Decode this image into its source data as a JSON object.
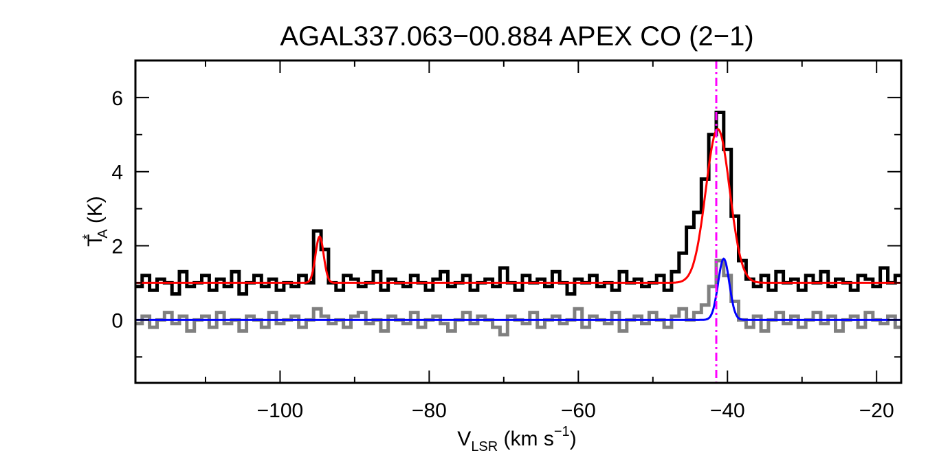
{
  "chart_data": {
    "type": "line",
    "title": "AGAL337.063−00.884  APEX CO (2−1)",
    "xlabel": {
      "main": "V",
      "sub": "LSR",
      "rest": " (km s",
      "sup": "−1",
      "close": ")"
    },
    "ylabel": {
      "main": "T",
      "sup": "*",
      "sub": "A",
      "rest": " (K)"
    },
    "xlim": [
      -119.4,
      -16.7
    ],
    "ylim": [
      -1.7,
      7.0
    ],
    "xticks": [
      -100,
      -80,
      -60,
      -40,
      -20
    ],
    "xtick_labels": [
      "−100",
      "−80",
      "−60",
      "−40",
      "−20"
    ],
    "yticks": [
      0,
      2,
      4,
      6
    ],
    "ytick_labels": [
      "0",
      "2",
      "4",
      "6"
    ],
    "x_minor_step": 10,
    "y_minor_step": 1,
    "grid": false,
    "channel_start": -119,
    "channel_width": 1,
    "series": [
      {
        "color": "#000000",
        "style": "histogram",
        "values": [
          0.9,
          1.2,
          0.8,
          1.1,
          1.0,
          0.7,
          1.3,
          0.9,
          1.0,
          1.2,
          0.8,
          1.1,
          0.9,
          1.3,
          0.7,
          1.0,
          1.2,
          0.9,
          1.1,
          0.8,
          1.0,
          0.9,
          1.2,
          1.0,
          2.4,
          1.9,
          1.0,
          0.8,
          1.2,
          1.1,
          0.9,
          1.0,
          1.3,
          0.8,
          1.1,
          1.0,
          0.9,
          1.2,
          1.0,
          0.8,
          1.1,
          1.3,
          0.9,
          1.0,
          1.2,
          0.8,
          1.0,
          1.1,
          0.9,
          1.4,
          1.0,
          0.8,
          1.2,
          1.0,
          1.1,
          0.9,
          1.3,
          1.0,
          0.7,
          1.1,
          1.0,
          1.2,
          0.9,
          1.0,
          0.8,
          1.3,
          1.0,
          1.1,
          0.9,
          1.0,
          1.2,
          0.8,
          1.3,
          1.8,
          2.5,
          2.9,
          3.8,
          5.0,
          5.6,
          4.6,
          2.8,
          1.6,
          1.1,
          0.9,
          1.2,
          0.8,
          1.3,
          1.0,
          1.1,
          0.8,
          1.2,
          1.0,
          1.3,
          0.9,
          1.1,
          1.0,
          0.8,
          1.2,
          1.1,
          0.9,
          1.4,
          1.0,
          1.2
        ]
      },
      {
        "color": "#808080",
        "style": "histogram",
        "values": [
          -0.1,
          0.1,
          -0.2,
          0.0,
          0.2,
          -0.1,
          0.1,
          -0.3,
          0.0,
          0.1,
          -0.2,
          0.2,
          -0.1,
          0.0,
          -0.3,
          0.1,
          0.0,
          -0.2,
          0.2,
          -0.1,
          0.0,
          0.1,
          -0.2,
          0.0,
          0.3,
          0.1,
          -0.1,
          0.0,
          -0.2,
          0.1,
          0.2,
          -0.1,
          0.0,
          -0.3,
          0.1,
          0.0,
          -0.1,
          0.2,
          -0.2,
          0.0,
          0.1,
          -0.1,
          -0.3,
          0.0,
          0.2,
          -0.1,
          0.1,
          0.0,
          -0.2,
          -0.4,
          0.1,
          0.0,
          -0.1,
          0.2,
          -0.2,
          0.0,
          0.1,
          -0.1,
          0.0,
          0.3,
          -0.2,
          0.1,
          0.0,
          -0.1,
          0.2,
          -0.3,
          0.0,
          0.1,
          -0.1,
          0.2,
          0.0,
          -0.2,
          0.1,
          0.3,
          0.0,
          0.2,
          0.4,
          0.9,
          1.6,
          1.2,
          0.5,
          0.0,
          -0.2,
          0.1,
          -0.3,
          0.0,
          0.2,
          -0.1,
          0.1,
          -0.2,
          0.0,
          0.2,
          -0.1,
          0.1,
          -0.3,
          0.0,
          0.1,
          -0.2,
          0.2,
          0.0,
          -0.1,
          0.1,
          -0.2
        ]
      },
      {
        "color": "#ff0000",
        "style": "gaussian-fit",
        "baseline": 1.0,
        "components": [
          {
            "amp": 1.25,
            "center": -94.7,
            "sigma": 0.55
          },
          {
            "amp": 4.15,
            "center": -41.3,
            "sigma": 1.6
          }
        ]
      },
      {
        "color": "#0000ff",
        "style": "gaussian-fit",
        "baseline": 0.0,
        "components": [
          {
            "amp": 1.65,
            "center": -40.5,
            "sigma": 0.75
          }
        ]
      }
    ],
    "vline": {
      "x": -41.5,
      "color": "#ff00ff",
      "style": "dash-dot"
    }
  }
}
